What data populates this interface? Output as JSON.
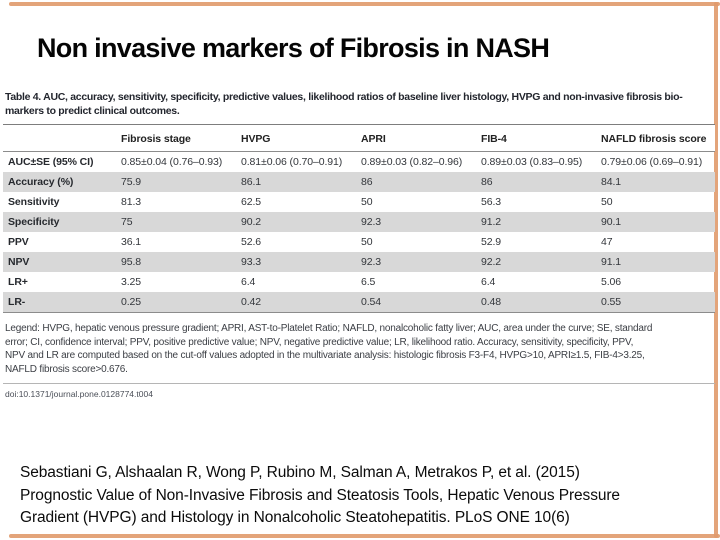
{
  "colors": {
    "accent": "#e09a6c",
    "stripe": "#d8d8d8"
  },
  "slide": {
    "title": "Non invasive markers of Fibrosis in NASH",
    "citation_lines": [
      "Sebastiani G, Alshaalan R, Wong P, Rubino M, Salman A, Metrakos P, et al. (2015)",
      "Prognostic Value of Non-Invasive Fibrosis and Steatosis Tools, Hepatic Venous Pressure",
      "Gradient (HVPG) and Histology in Nonalcoholic Steatohepatitis. PLoS ONE 10(6)"
    ]
  },
  "figure": {
    "caption_label": "Table 4.",
    "caption_line1": "AUC, accuracy, sensitivity, specificity, predictive values, likelihood ratios of baseline liver histology, HVPG and non-invasive fibrosis bio-",
    "caption_line2": "markers to predict clinical outcomes.",
    "legend_lines": [
      "Legend: HVPG, hepatic venous pressure gradient; APRI, AST-to-Platelet Ratio; NAFLD, nonalcoholic fatty liver; AUC, area under the curve; SE, standard",
      "error; CI, confidence interval; PPV, positive predictive value; NPV, negative predictive value; LR, likelihood ratio. Accuracy, sensitivity, specificity, PPV,",
      "NPV and LR are computed based on the cut-off values adopted in the multivariate analysis: histologic fibrosis F3-F4, HVPG>10, APRI≥1.5, FIB-4>3.25,",
      "NAFLD fibrosis score>0.676."
    ],
    "doi": "doi:10.1371/journal.pone.0128774.t004"
  },
  "chart_data": {
    "type": "table",
    "title": "Table 4. AUC, accuracy, sensitivity, specificity, predictive values, likelihood ratios of baseline liver histology, HVPG and non-invasive fibrosis bio-markers to predict clinical outcomes.",
    "columns": [
      "",
      "Fibrosis stage",
      "HVPG",
      "APRI",
      "FIB-4",
      "NAFLD fibrosis score"
    ],
    "rows": [
      {
        "label": "AUC±SE (95% CI)",
        "values": [
          "0.85±0.04 (0.76–0.93)",
          "0.81±0.06 (0.70–0.91)",
          "0.89±0.03 (0.82–0.96)",
          "0.89±0.03 (0.83–0.95)",
          "0.79±0.06 (0.69–0.91)"
        ]
      },
      {
        "label": "Accuracy (%)",
        "values": [
          "75.9",
          "86.1",
          "86",
          "86",
          "84.1"
        ]
      },
      {
        "label": "Sensitivity",
        "values": [
          "81.3",
          "62.5",
          "50",
          "56.3",
          "50"
        ]
      },
      {
        "label": "Specificity",
        "values": [
          "75",
          "90.2",
          "92.3",
          "91.2",
          "90.1"
        ]
      },
      {
        "label": "PPV",
        "values": [
          "36.1",
          "52.6",
          "50",
          "52.9",
          "47"
        ]
      },
      {
        "label": "NPV",
        "values": [
          "95.8",
          "93.3",
          "92.3",
          "92.2",
          "91.1"
        ]
      },
      {
        "label": "LR+",
        "values": [
          "3.25",
          "6.4",
          "6.5",
          "6.4",
          "5.06"
        ]
      },
      {
        "label": "LR-",
        "values": [
          "0.25",
          "0.42",
          "0.54",
          "0.48",
          "0.55"
        ]
      }
    ]
  }
}
